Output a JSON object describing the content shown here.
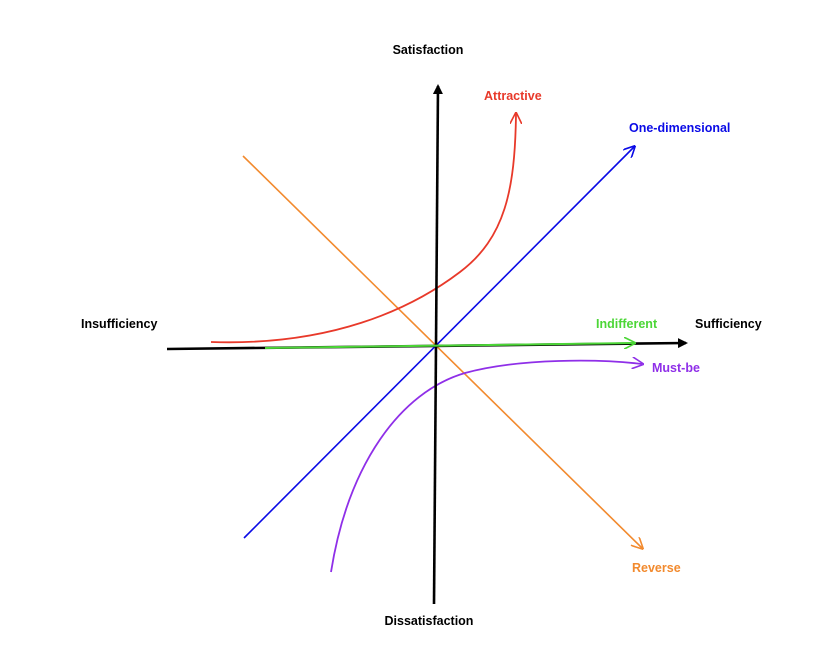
{
  "axes": {
    "top_label": "Satisfaction",
    "bottom_label": "Dissatisfaction",
    "left_label": "Insufficiency",
    "right_label": "Sufficiency",
    "color": "#000000"
  },
  "curves": {
    "attractive": {
      "label": "Attractive",
      "color": "#e8392a"
    },
    "one_dimensional": {
      "label": "One-dimensional",
      "color": "#0a0ae6"
    },
    "indifferent": {
      "label": "Indifferent",
      "color": "#4cd637"
    },
    "must_be": {
      "label": "Must-be",
      "color": "#8f2fe8"
    },
    "reverse": {
      "label": "Reverse",
      "color": "#f28a2e"
    }
  }
}
